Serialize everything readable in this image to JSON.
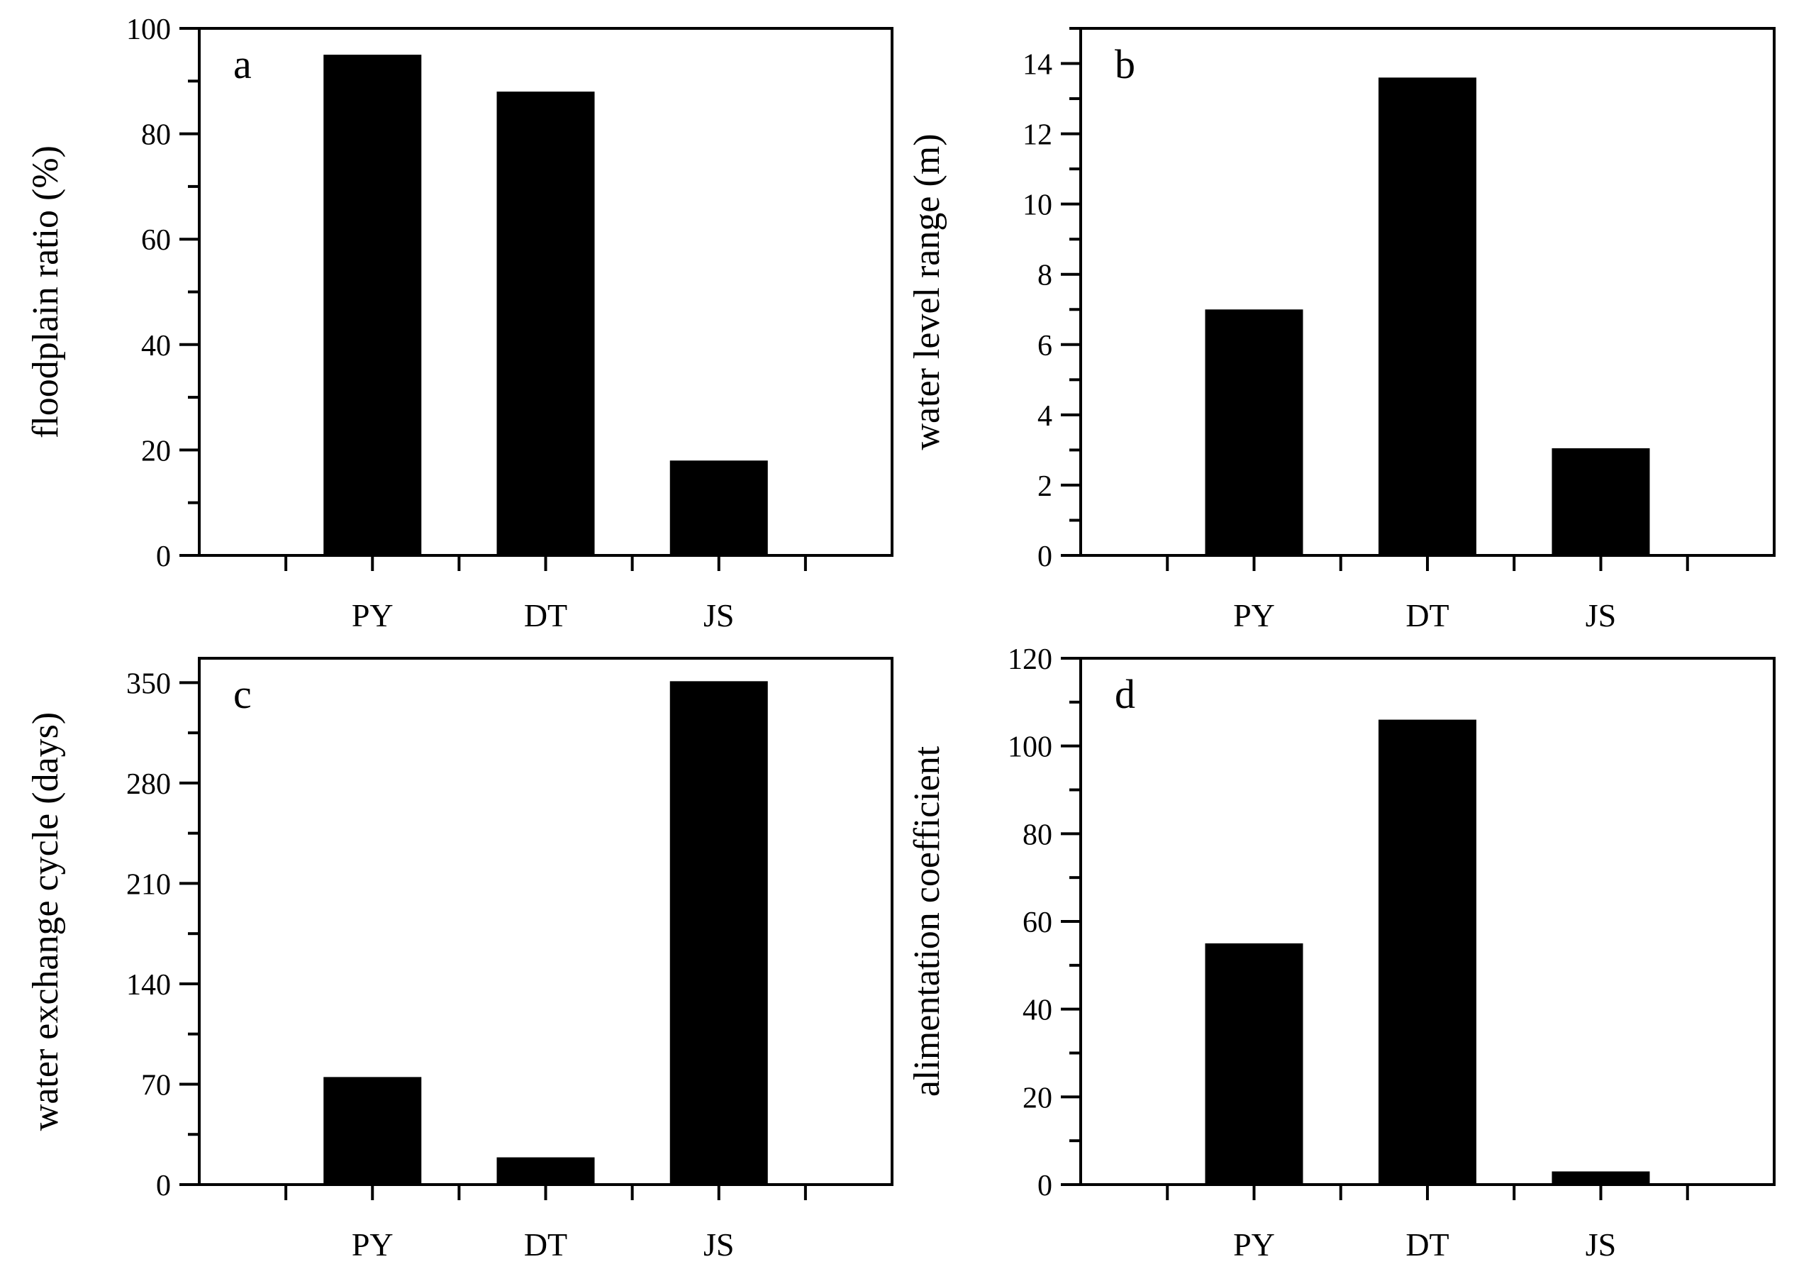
{
  "colors": {
    "bar": "#000000",
    "axis": "#000000",
    "background": "#ffffff"
  },
  "chart_data": [
    {
      "panel": "a",
      "type": "bar",
      "categories": [
        "PY",
        "DT",
        "JS"
      ],
      "values": [
        95,
        88,
        18
      ],
      "xlabel": "",
      "ylabel": "floodplain  ratio (%)",
      "ylim": [
        0,
        100
      ],
      "yticks": [
        0,
        20,
        40,
        60,
        80,
        100
      ],
      "ytick_labels": [
        "0",
        "20",
        "40",
        "60",
        "80",
        "100"
      ],
      "minor_step": 10,
      "grid": false
    },
    {
      "panel": "b",
      "type": "bar",
      "categories": [
        "PY",
        "DT",
        "JS"
      ],
      "values": [
        7.0,
        13.6,
        3.05
      ],
      "xlabel": "",
      "ylabel": "water level range (m)",
      "ylim": [
        0,
        15
      ],
      "yticks": [
        0,
        2,
        4,
        6,
        8,
        10,
        12,
        14
      ],
      "ytick_labels": [
        "0",
        "2",
        "4",
        "6",
        "8",
        "10",
        "12",
        "14"
      ],
      "minor_step": 1,
      "grid": false
    },
    {
      "panel": "c",
      "type": "bar",
      "categories": [
        "PY",
        "DT",
        "JS"
      ],
      "values": [
        75,
        19,
        351
      ],
      "xlabel": "",
      "ylabel": "water exchange cycle (days)",
      "ylim": [
        0,
        367
      ],
      "yticks": [
        0,
        70,
        140,
        210,
        280,
        350
      ],
      "ytick_labels": [
        "0",
        "70",
        "140",
        "210",
        "280",
        "350"
      ],
      "minor_step": 35,
      "grid": false
    },
    {
      "panel": "d",
      "type": "bar",
      "categories": [
        "PY",
        "DT",
        "JS"
      ],
      "values": [
        55,
        106,
        3
      ],
      "xlabel": "",
      "ylabel": "alimentation coefficient",
      "ylim": [
        0,
        120
      ],
      "yticks": [
        0,
        20,
        40,
        60,
        80,
        100,
        120
      ],
      "ytick_labels": [
        "0",
        "20",
        "40",
        "60",
        "80",
        "100",
        "120"
      ],
      "minor_step": 10,
      "grid": false
    }
  ]
}
